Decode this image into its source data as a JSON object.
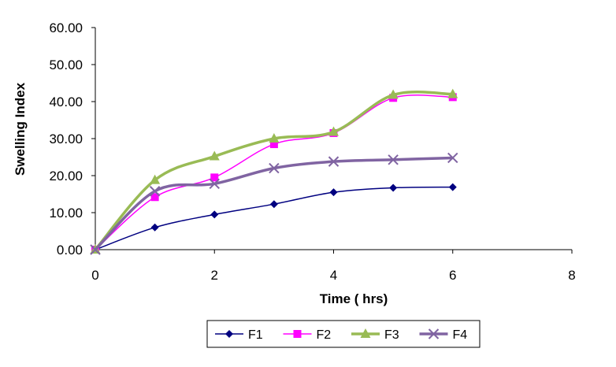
{
  "chart_data": {
    "type": "line",
    "title": "",
    "xlabel": "Time ( hrs)",
    "ylabel": "Swelling Index",
    "xlim": [
      0,
      8
    ],
    "ylim": [
      0,
      60
    ],
    "x_ticks": [
      "0",
      "2",
      "4",
      "6",
      "8"
    ],
    "y_ticks": [
      "0.00",
      "10.00",
      "20.00",
      "30.00",
      "40.00",
      "50.00",
      "60.00"
    ],
    "grid": false,
    "legend_position": "bottom",
    "smoothed": true,
    "x": [
      0,
      1,
      2,
      3,
      4,
      5,
      6
    ],
    "series": [
      {
        "name": "F1",
        "color": "#000080",
        "marker": "diamond",
        "values": [
          0,
          6.0,
          9.5,
          12.3,
          15.5,
          16.7,
          16.9
        ]
      },
      {
        "name": "F2",
        "color": "#FF00FF",
        "marker": "square",
        "values": [
          0,
          14.2,
          19.5,
          28.5,
          31.5,
          41.0,
          41.2
        ]
      },
      {
        "name": "F3",
        "color": "#99BB55",
        "marker": "triangle",
        "values": [
          0,
          18.8,
          25.2,
          30.0,
          31.8,
          41.8,
          42.0
        ]
      },
      {
        "name": "F4",
        "color": "#8064A2",
        "marker": "x",
        "values": [
          0,
          15.8,
          17.8,
          22.0,
          23.8,
          24.3,
          24.8
        ]
      }
    ]
  }
}
